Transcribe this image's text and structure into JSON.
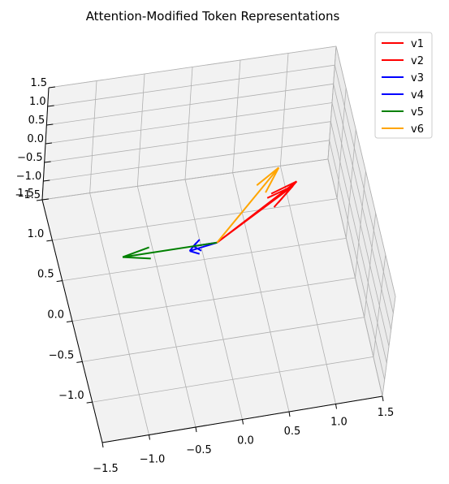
{
  "chart_data": {
    "type": "quiver3d",
    "title": "Attention-Modified Token Representations",
    "xlim": [
      -1.5,
      1.5
    ],
    "ylim": [
      -1.5,
      1.5
    ],
    "zlim": [
      -1.5,
      1.5
    ],
    "x_ticks": [
      "−1.5",
      "−1.0",
      "−0.5",
      "0.0",
      "0.5",
      "1.0",
      "1.5"
    ],
    "y_ticks": [
      "−1.0",
      "−0.5",
      "0.0",
      "0.5",
      "1.0",
      "1.5"
    ],
    "z_ticks": [
      "1.5",
      "1.0",
      "0.5",
      "0.0",
      "−0.5",
      "−1.0",
      "−1.5"
    ],
    "grid": true,
    "legend_position": "upper right",
    "series": [
      {
        "name": "v1",
        "color": "#ff0000",
        "origin": [
          0,
          0,
          0
        ],
        "vector": [
          0.95,
          0.55,
          0.1
        ]
      },
      {
        "name": "v2",
        "color": "#ff0000",
        "origin": [
          0,
          0,
          0
        ],
        "vector": [
          0.9,
          0.5,
          0.1
        ]
      },
      {
        "name": "v3",
        "color": "#0000ff",
        "origin": [
          0,
          0,
          0
        ],
        "vector": [
          -0.3,
          -0.05,
          0.0
        ]
      },
      {
        "name": "v4",
        "color": "#0000ff",
        "origin": [
          0,
          0,
          0
        ],
        "vector": [
          -0.25,
          0.0,
          0.0
        ]
      },
      {
        "name": "v5",
        "color": "#008000",
        "origin": [
          0,
          0,
          0
        ],
        "vector": [
          -1.0,
          0.0,
          0.0
        ]
      },
      {
        "name": "v6",
        "color": "#ffa500",
        "origin": [
          0,
          0,
          0
        ],
        "vector": [
          0.8,
          0.75,
          0.1
        ]
      }
    ]
  }
}
